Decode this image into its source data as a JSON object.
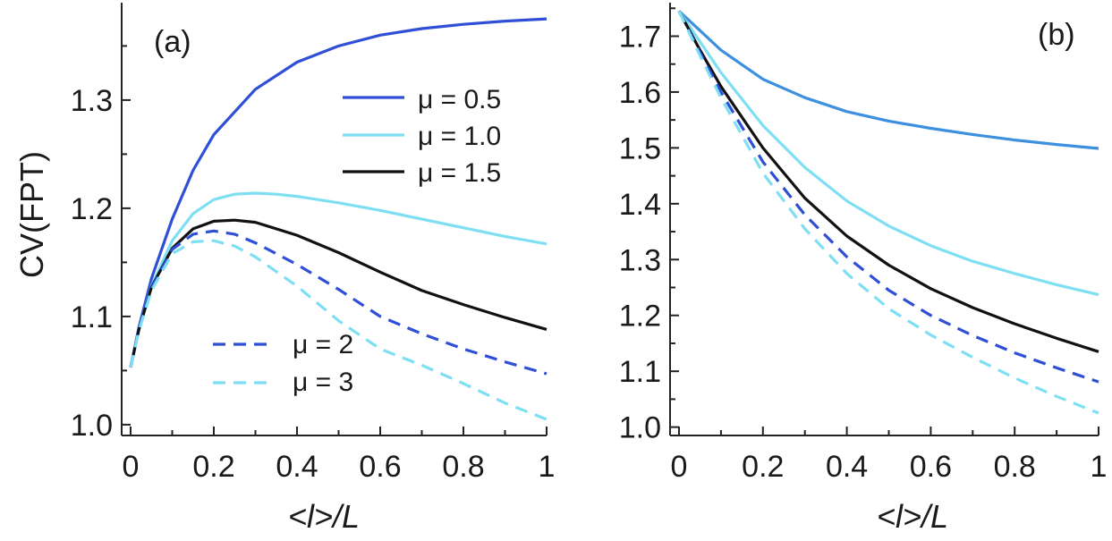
{
  "chart_data": [
    {
      "type": "line",
      "panel_label": "(a)",
      "xlabel": "<l>/L",
      "ylabel": "CV(FPT)",
      "xlim": [
        0,
        1
      ],
      "ylim": [
        0.99,
        1.39
      ],
      "xticks": [
        0,
        0.2,
        0.4,
        0.6,
        0.8,
        1
      ],
      "xtick_labels": [
        "0",
        "0.2",
        "0.4",
        "0.6",
        "0.8",
        "1"
      ],
      "yticks": [
        1.0,
        1.1,
        1.2,
        1.3
      ],
      "ytick_labels": [
        "1.0",
        "1.1",
        "1.2",
        "1.3"
      ],
      "legend": [
        {
          "label": "μ = 0.5",
          "position": "upper-right"
        },
        {
          "label": "μ = 1.0",
          "position": "upper-right"
        },
        {
          "label": "μ = 1.5",
          "position": "upper-right"
        },
        {
          "label": "μ = 2",
          "position": "lower-left"
        },
        {
          "label": "μ = 3",
          "position": "lower-left"
        }
      ],
      "series": [
        {
          "name": "μ = 0.5",
          "color": "#2e4fd6",
          "dash": "solid",
          "x": [
            0,
            0.02,
            0.05,
            0.1,
            0.15,
            0.2,
            0.3,
            0.4,
            0.5,
            0.6,
            0.7,
            0.8,
            0.9,
            1.0
          ],
          "y": [
            1.053,
            1.09,
            1.135,
            1.19,
            1.235,
            1.268,
            1.31,
            1.335,
            1.35,
            1.36,
            1.366,
            1.37,
            1.373,
            1.375
          ]
        },
        {
          "name": "μ = 1.0",
          "color": "#7fdff2",
          "dash": "solid",
          "x": [
            0,
            0.02,
            0.05,
            0.1,
            0.15,
            0.2,
            0.25,
            0.3,
            0.35,
            0.4,
            0.5,
            0.6,
            0.7,
            0.8,
            0.9,
            1.0
          ],
          "y": [
            1.053,
            1.088,
            1.128,
            1.17,
            1.195,
            1.208,
            1.213,
            1.214,
            1.213,
            1.211,
            1.205,
            1.198,
            1.19,
            1.182,
            1.174,
            1.167
          ]
        },
        {
          "name": "μ = 1.5",
          "color": "#111111",
          "dash": "solid",
          "x": [
            0,
            0.02,
            0.05,
            0.1,
            0.15,
            0.2,
            0.25,
            0.3,
            0.4,
            0.5,
            0.6,
            0.7,
            0.8,
            0.9,
            1.0
          ],
          "y": [
            1.053,
            1.088,
            1.127,
            1.163,
            1.181,
            1.188,
            1.189,
            1.187,
            1.175,
            1.159,
            1.141,
            1.124,
            1.111,
            1.099,
            1.088
          ]
        },
        {
          "name": "μ = 2",
          "color": "#2e4fd6",
          "dash": "dashed",
          "x": [
            0,
            0.02,
            0.05,
            0.1,
            0.15,
            0.2,
            0.25,
            0.3,
            0.4,
            0.5,
            0.6,
            0.7,
            0.8,
            0.9,
            1.0
          ],
          "y": [
            1.053,
            1.088,
            1.126,
            1.162,
            1.176,
            1.179,
            1.176,
            1.168,
            1.148,
            1.125,
            1.1,
            1.084,
            1.07,
            1.058,
            1.047
          ]
        },
        {
          "name": "μ = 3",
          "color": "#7fdff2",
          "dash": "dashed",
          "x": [
            0,
            0.02,
            0.05,
            0.1,
            0.15,
            0.2,
            0.25,
            0.3,
            0.4,
            0.5,
            0.6,
            0.7,
            0.8,
            0.9,
            1.0
          ],
          "y": [
            1.053,
            1.087,
            1.124,
            1.158,
            1.169,
            1.17,
            1.165,
            1.155,
            1.128,
            1.096,
            1.07,
            1.055,
            1.038,
            1.02,
            1.005
          ]
        }
      ]
    },
    {
      "type": "line",
      "panel_label": "(b)",
      "xlabel": "<l>/L",
      "ylabel": "",
      "xlim": [
        0,
        1
      ],
      "ylim": [
        0.985,
        1.76
      ],
      "xticks": [
        0,
        0.2,
        0.4,
        0.6,
        0.8,
        1
      ],
      "xtick_labels": [
        "0",
        "0.2",
        "0.4",
        "0.6",
        "0.8",
        "1"
      ],
      "yticks": [
        1.0,
        1.1,
        1.2,
        1.3,
        1.4,
        1.5,
        1.6,
        1.7
      ],
      "ytick_labels": [
        "1.0",
        "1.1",
        "1.2",
        "1.3",
        "1.4",
        "1.5",
        "1.6",
        "1.7"
      ],
      "series": [
        {
          "name": "μ = 0.5",
          "color": "#3d8fe0",
          "dash": "solid",
          "x": [
            0,
            0.05,
            0.1,
            0.2,
            0.3,
            0.4,
            0.5,
            0.6,
            0.7,
            0.8,
            0.9,
            1.0
          ],
          "y": [
            1.745,
            1.71,
            1.675,
            1.623,
            1.59,
            1.565,
            1.548,
            1.535,
            1.524,
            1.514,
            1.506,
            1.499
          ]
        },
        {
          "name": "μ = 1.0",
          "color": "#7fdff2",
          "dash": "solid",
          "x": [
            0,
            0.05,
            0.1,
            0.2,
            0.3,
            0.4,
            0.5,
            0.6,
            0.7,
            0.8,
            0.9,
            1.0
          ],
          "y": [
            1.745,
            1.69,
            1.635,
            1.54,
            1.465,
            1.405,
            1.36,
            1.325,
            1.297,
            1.275,
            1.255,
            1.237
          ]
        },
        {
          "name": "μ = 1.5",
          "color": "#111111",
          "dash": "solid",
          "x": [
            0,
            0.05,
            0.1,
            0.2,
            0.3,
            0.4,
            0.5,
            0.6,
            0.7,
            0.8,
            0.9,
            1.0
          ],
          "y": [
            1.745,
            1.675,
            1.61,
            1.5,
            1.41,
            1.342,
            1.29,
            1.248,
            1.214,
            1.185,
            1.159,
            1.135
          ]
        },
        {
          "name": "μ = 2",
          "color": "#2e4fd6",
          "dash": "dashed",
          "x": [
            0,
            0.05,
            0.1,
            0.2,
            0.3,
            0.4,
            0.5,
            0.6,
            0.7,
            0.8,
            0.9,
            1.0
          ],
          "y": [
            1.745,
            1.67,
            1.6,
            1.475,
            1.38,
            1.305,
            1.245,
            1.2,
            1.164,
            1.133,
            1.106,
            1.081
          ]
        },
        {
          "name": "μ = 3",
          "color": "#7fdff2",
          "dash": "dashed",
          "x": [
            0,
            0.05,
            0.1,
            0.2,
            0.3,
            0.4,
            0.5,
            0.6,
            0.7,
            0.8,
            0.9,
            1.0
          ],
          "y": [
            1.745,
            1.665,
            1.59,
            1.455,
            1.355,
            1.275,
            1.212,
            1.165,
            1.125,
            1.088,
            1.055,
            1.025
          ]
        }
      ]
    }
  ]
}
